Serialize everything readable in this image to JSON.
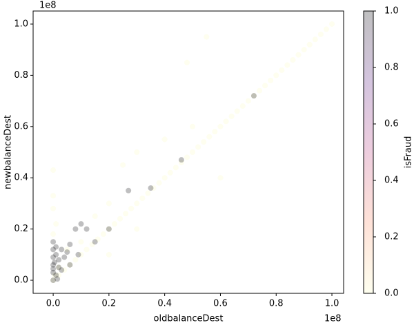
{
  "chart_data": {
    "type": "scatter",
    "x_label": "oldbalanceDest",
    "y_label": "newbalanceDest",
    "colorbar_label": "isFraud",
    "x_offset_label": "1e8",
    "y_offset_label": "1e8",
    "x": [
      0,
      0.02,
      0.04,
      0.06,
      0.08,
      0.1,
      0.12,
      0.14,
      0.16,
      0.18,
      0.2,
      0.22,
      0.24,
      0.26,
      0.28,
      0.3,
      0.32,
      0.34,
      0.36,
      0.38,
      0.4,
      0.42,
      0.44,
      0.46,
      0.48,
      0.5,
      0.52,
      0.54,
      0.56,
      0.58,
      0.6,
      0.62,
      0.64,
      0.66,
      0.68,
      0.7,
      0.72,
      0.74,
      0.76,
      0.78,
      0.8,
      0.82,
      0.84,
      0.86,
      0.88,
      0.9,
      0.92,
      0.94,
      0.96,
      0.98,
      1,
      0.05,
      0.1,
      0.15,
      0.2,
      0.25,
      0.3,
      0.4,
      0.5,
      0.55,
      0.6,
      0.48,
      0.3,
      0.2,
      0,
      0,
      0.01,
      0,
      0,
      0.02,
      0.005,
      0,
      0,
      0,
      0,
      0.01,
      0.01,
      0.02,
      0.02,
      0.03,
      0,
      0,
      0.03,
      0.04,
      0.05,
      0.06,
      0.08,
      0.1,
      0.12,
      0.15,
      0.2,
      0.27,
      0.35,
      0.46,
      0.72,
      0.06,
      0.09,
      0.005,
      0.01,
      0,
      0.015
    ],
    "y": [
      0,
      0.02,
      0.04,
      0.06,
      0.08,
      0.1,
      0.12,
      0.14,
      0.16,
      0.18,
      0.2,
      0.22,
      0.24,
      0.26,
      0.28,
      0.3,
      0.32,
      0.34,
      0.36,
      0.38,
      0.4,
      0.42,
      0.44,
      0.46,
      0.48,
      0.5,
      0.52,
      0.54,
      0.56,
      0.58,
      0.6,
      0.62,
      0.64,
      0.66,
      0.68,
      0.7,
      0.72,
      0.74,
      0.76,
      0.78,
      0.8,
      0.82,
      0.84,
      0.86,
      0.88,
      0.9,
      0.92,
      0.94,
      0.96,
      0.98,
      1,
      0.12,
      0.15,
      0.25,
      0.3,
      0.45,
      0.5,
      0.55,
      0.6,
      0.95,
      0.4,
      0.85,
      0.2,
      0.1,
      0.33,
      0.28,
      0.22,
      0.18,
      0.43,
      0.05,
      0.02,
      0,
      0.03,
      0.06,
      0.09,
      0.1,
      0.02,
      0.05,
      0.08,
      0.12,
      0.12,
      0.15,
      0.04,
      0.09,
      0.11,
      0.14,
      0.2,
      0.22,
      0.2,
      0.15,
      0.2,
      0.35,
      0.36,
      0.47,
      0.72,
      0.06,
      0.1,
      0.07,
      0.13,
      0.045,
      0.005
    ],
    "c": [
      0,
      0,
      0,
      0,
      0,
      0,
      0,
      0,
      0,
      0,
      0,
      0,
      0,
      0,
      0,
      0,
      0,
      0,
      0,
      0,
      0,
      0,
      0,
      0,
      0,
      0,
      0,
      0,
      0,
      0,
      0,
      0,
      0,
      0,
      0,
      0,
      0,
      0,
      0,
      0,
      0,
      0,
      0,
      0,
      0,
      0,
      0,
      0,
      0,
      0,
      0,
      0,
      0,
      0,
      0,
      0,
      0,
      0,
      0,
      0,
      0,
      0,
      0,
      0,
      0,
      0,
      0,
      0,
      0,
      0,
      0,
      1,
      1,
      1,
      1,
      1,
      1,
      1,
      1,
      1,
      1,
      1,
      1,
      1,
      1,
      1,
      1,
      1,
      1,
      1,
      1,
      1,
      1,
      1,
      1,
      1,
      1,
      1,
      1,
      1,
      1
    ],
    "xlim": [
      -0.072,
      1.042
    ],
    "ylim": [
      -0.051,
      1.051
    ],
    "clim": [
      0,
      1
    ],
    "xticks": [
      {
        "value": 0,
        "label": "0.0"
      },
      0.2,
      0.4,
      0.6,
      0.8,
      {
        "value": 1,
        "label": "1.0"
      }
    ],
    "yticks": [
      {
        "value": 0,
        "label": "0.0"
      },
      0.2,
      0.4,
      0.6,
      0.8,
      {
        "value": 1,
        "label": "1.0"
      }
    ],
    "cticks": [
      {
        "value": 0,
        "label": "0.0"
      },
      0.2,
      0.4,
      0.6,
      0.8,
      {
        "value": 1,
        "label": "1.0"
      }
    ],
    "colormap": [
      "#fcfdbf",
      "#fc8961",
      "#b73779",
      "#51127c",
      "#000004"
    ],
    "alpha": 0.25
  }
}
